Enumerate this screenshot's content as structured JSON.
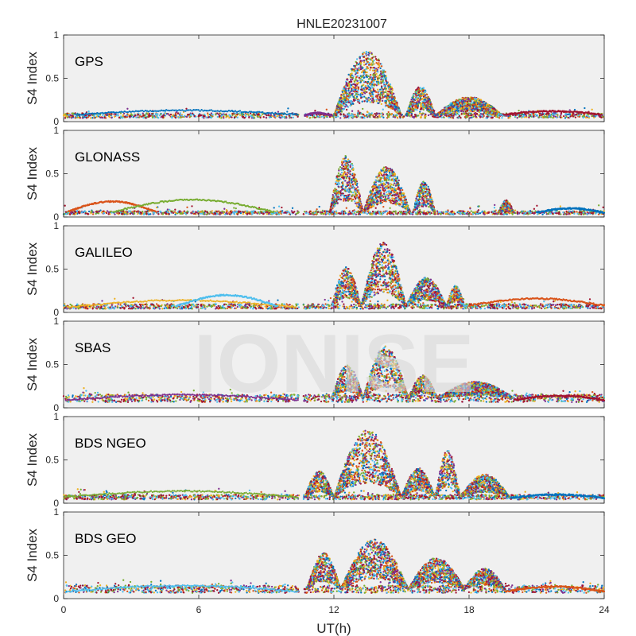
{
  "figure": {
    "title": "HNLE20231007",
    "watermark": "IONISE",
    "xlabel": "UT(h)",
    "ylabel": "S4 Index"
  },
  "chart_data": {
    "type": "scatter",
    "title": "HNLE20231007",
    "xlabel": "UT(h)",
    "ylabel": "S4 Index",
    "xlim": [
      0,
      24
    ],
    "ylim": [
      0,
      1
    ],
    "xticks": [
      0,
      6,
      12,
      18,
      24
    ],
    "yticks": [
      0,
      0.5,
      1
    ],
    "ytick_labels": [
      "0",
      "0.5",
      "1"
    ],
    "data_gap": [
      10.45,
      10.65
    ],
    "colors": [
      "#0072BD",
      "#D95319",
      "#EDB120",
      "#7E2F8E",
      "#77AC30",
      "#4DBEEE",
      "#A2142F"
    ],
    "panels": [
      {
        "label": "GPS",
        "baseline": 0.07,
        "bursts": [
          [
            12.0,
            15.0,
            0.62
          ],
          [
            15.2,
            16.5,
            0.28
          ],
          [
            16.5,
            19.5,
            0.18
          ]
        ],
        "arcs": [
          [
            0.5,
            10.4,
            0.08,
            0.13
          ],
          [
            10.7,
            11.9,
            0.07,
            0.1
          ],
          [
            19.5,
            23.9,
            0.08,
            0.12
          ]
        ]
      },
      {
        "label": "GLONASS",
        "baseline": 0.05,
        "bursts": [
          [
            11.8,
            13.3,
            0.55
          ],
          [
            13.3,
            15.4,
            0.45
          ],
          [
            15.5,
            16.5,
            0.3
          ],
          [
            19.3,
            20.0,
            0.12
          ]
        ],
        "arcs": [
          [
            0.2,
            4.1,
            0.06,
            0.18
          ],
          [
            2.2,
            9.3,
            0.06,
            0.2
          ],
          [
            21.0,
            24.0,
            0.05,
            0.1
          ]
        ]
      },
      {
        "label": "GALILEO",
        "baseline": 0.07,
        "bursts": [
          [
            11.9,
            13.2,
            0.38
          ],
          [
            13.2,
            15.2,
            0.62
          ],
          [
            15.2,
            17.0,
            0.28
          ],
          [
            17.0,
            17.8,
            0.2
          ]
        ],
        "arcs": [
          [
            0.2,
            10.3,
            0.06,
            0.14
          ],
          [
            5.0,
            9.5,
            0.07,
            0.2
          ],
          [
            18.0,
            24.0,
            0.08,
            0.16
          ]
        ]
      },
      {
        "label": "SBAS",
        "baseline": 0.11,
        "bursts": [
          [
            11.9,
            13.3,
            0.32
          ],
          [
            13.3,
            15.3,
            0.5
          ],
          [
            15.3,
            16.6,
            0.22
          ],
          [
            16.6,
            20.0,
            0.16
          ]
        ],
        "arcs": [
          [
            0.1,
            10.4,
            0.09,
            0.15
          ],
          [
            20.0,
            24.0,
            0.09,
            0.14
          ]
        ]
      },
      {
        "label": "BDS NGEO",
        "baseline": 0.07,
        "bursts": [
          [
            10.7,
            12.0,
            0.25
          ],
          [
            12.0,
            15.0,
            0.65
          ],
          [
            15.0,
            16.5,
            0.28
          ],
          [
            16.5,
            17.6,
            0.45
          ],
          [
            17.6,
            19.8,
            0.22
          ]
        ],
        "arcs": [
          [
            0.1,
            10.4,
            0.07,
            0.14
          ],
          [
            19.8,
            24.0,
            0.06,
            0.1
          ]
        ]
      },
      {
        "label": "BDS GEO",
        "baseline": 0.11,
        "bursts": [
          [
            10.8,
            12.3,
            0.35
          ],
          [
            12.3,
            15.3,
            0.48
          ],
          [
            15.3,
            17.8,
            0.3
          ],
          [
            17.8,
            19.6,
            0.2
          ]
        ],
        "arcs": [
          [
            0.1,
            10.4,
            0.08,
            0.15
          ],
          [
            19.6,
            24.0,
            0.08,
            0.14
          ]
        ]
      }
    ]
  }
}
